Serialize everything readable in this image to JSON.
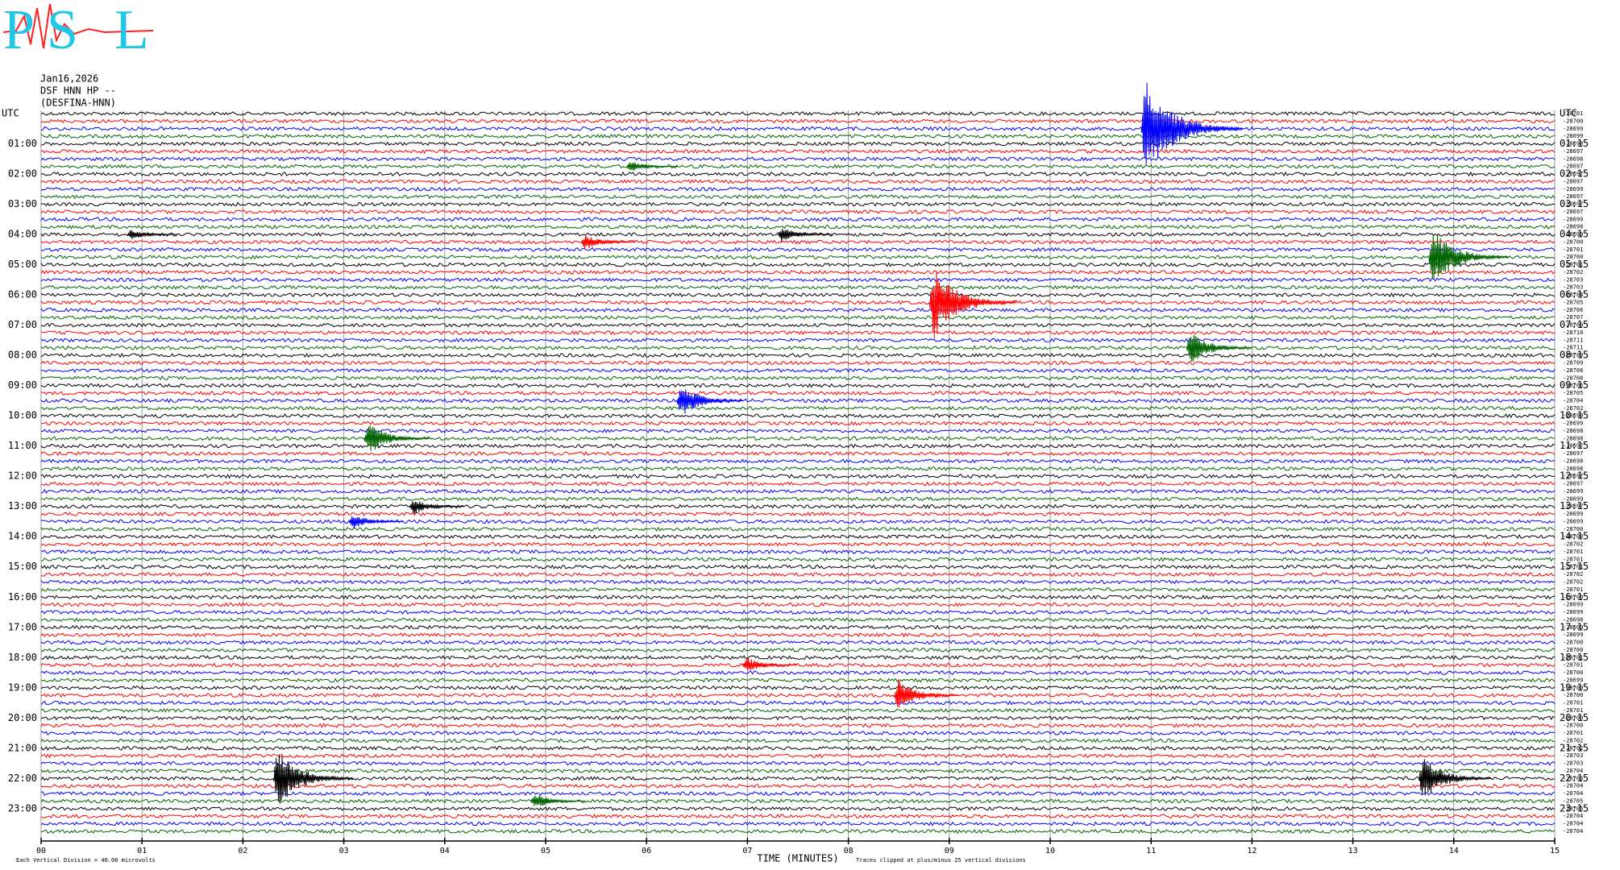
{
  "chart_data": {
    "type": "helicorder",
    "logo_letters": [
      "P",
      "S",
      "L"
    ],
    "header": [
      "Jan16,2026",
      "DSF HNN HP --",
      "(DESFINA-HNN)"
    ],
    "left_labels": [
      "UTC",
      "01:00",
      "02:00",
      "03:00",
      "04:00",
      "05:00",
      "06:00",
      "07:00",
      "08:00",
      "09:00",
      "10:00",
      "11:00",
      "12:00",
      "13:00",
      "14:00",
      "15:00",
      "16:00",
      "17:00",
      "18:00",
      "19:00",
      "20:00",
      "21:00",
      "22:00",
      "23:00"
    ],
    "right_labels": [
      "UTC",
      "01:15",
      "02:15",
      "03:15",
      "04:15",
      "05:15",
      "06:15",
      "07:15",
      "08:15",
      "09:15",
      "10:15",
      "11:15",
      "12:15",
      "13:15",
      "14:15",
      "15:15",
      "16:15",
      "17:15",
      "18:15",
      "19:15",
      "20:15",
      "21:15",
      "22:15",
      "23:15"
    ],
    "trace_offsets": [
      -28701,
      -28700,
      -28699,
      -28699,
      -28698,
      -28697,
      -28698,
      -28697,
      -28697,
      -28697,
      -28699,
      -28697,
      -28697,
      -28697,
      -28699,
      -28698,
      -28699,
      -28700,
      -28701,
      -28700,
      -28701,
      -28702,
      -28703,
      -28703,
      -28704,
      -28705,
      -28706,
      -28707,
      -28709,
      -28710,
      -28711,
      -28711,
      -28709,
      -28709,
      -28708,
      -28708,
      -28706,
      -28705,
      -28704,
      -28702,
      -28699,
      -28699,
      -28698,
      -28698,
      -28697,
      -28697,
      -28698,
      -28698,
      -28697,
      -28697,
      -28699,
      -28699,
      -28697,
      -28699,
      -28699,
      -28700,
      -28700,
      -28702,
      -28701,
      -28701,
      -28701,
      -28702,
      -28702,
      -28701,
      -28700,
      -28699,
      -28699,
      -28698,
      -28699,
      -28699,
      -28700,
      -28700,
      -28701,
      -28701,
      -28700,
      -28699,
      -28700,
      -28700,
      -28701,
      -28701,
      -28700,
      -28700,
      -28701,
      -28702,
      -28702,
      -28703,
      -28703,
      -28704,
      -28703,
      -28704,
      -28704,
      -28705,
      -28705,
      -28704,
      -28704,
      -28704
    ],
    "colors": [
      "#000000",
      "#ff0000",
      "#0000ff",
      "#006400"
    ],
    "xlim": [
      0,
      15
    ],
    "xticks": [
      {
        "value": 0,
        "label": "00"
      },
      {
        "value": 1,
        "label": "01"
      },
      {
        "value": 2,
        "label": "02"
      },
      {
        "value": 3,
        "label": "03"
      },
      {
        "value": 4,
        "label": "04"
      },
      {
        "value": 5,
        "label": "05"
      },
      {
        "value": 6,
        "label": "06"
      },
      {
        "value": 7,
        "label": "07"
      },
      {
        "value": 8,
        "label": "08"
      },
      {
        "value": 9,
        "label": "09"
      },
      {
        "value": 10,
        "label": "10"
      },
      {
        "value": 11,
        "label": "11"
      },
      {
        "value": 12,
        "label": "12"
      },
      {
        "value": 13,
        "label": "13"
      },
      {
        "value": 14,
        "label": "14"
      },
      {
        "value": 15,
        "label": "15"
      }
    ],
    "xlabel": "TIME (MINUTES)",
    "footer_left": "Each Vertical Division =   40.00 microvolts",
    "footer_right": "Traces clipped at plus/minus 25 vertical divisions",
    "events": [
      {
        "trace": 2,
        "minute": 10.95,
        "amplitude": 8
      },
      {
        "trace": 25,
        "minute": 8.85,
        "amplitude": 6
      },
      {
        "trace": 19,
        "minute": 13.8,
        "amplitude": 5
      },
      {
        "trace": 88,
        "minute": 2.35,
        "amplitude": 5
      },
      {
        "trace": 88,
        "minute": 13.7,
        "amplitude": 4
      },
      {
        "trace": 31,
        "minute": 11.4,
        "amplitude": 3
      },
      {
        "trace": 38,
        "minute": 6.35,
        "amplitude": 3
      },
      {
        "trace": 43,
        "minute": 3.25,
        "amplitude": 3
      },
      {
        "trace": 77,
        "minute": 8.5,
        "amplitude": 3
      },
      {
        "trace": 73,
        "minute": 7.0,
        "amplitude": 1.5
      },
      {
        "trace": 91,
        "minute": 4.9,
        "amplitude": 1.5
      },
      {
        "trace": 16,
        "minute": 0.9,
        "amplitude": 1
      },
      {
        "trace": 17,
        "minute": 5.4,
        "amplitude": 1.5
      },
      {
        "trace": 52,
        "minute": 3.7,
        "amplitude": 1.5
      },
      {
        "trace": 54,
        "minute": 3.1,
        "amplitude": 1.5
      },
      {
        "trace": 16,
        "minute": 7.35,
        "amplitude": 1.5
      },
      {
        "trace": 7,
        "minute": 5.85,
        "amplitude": 1
      }
    ]
  }
}
